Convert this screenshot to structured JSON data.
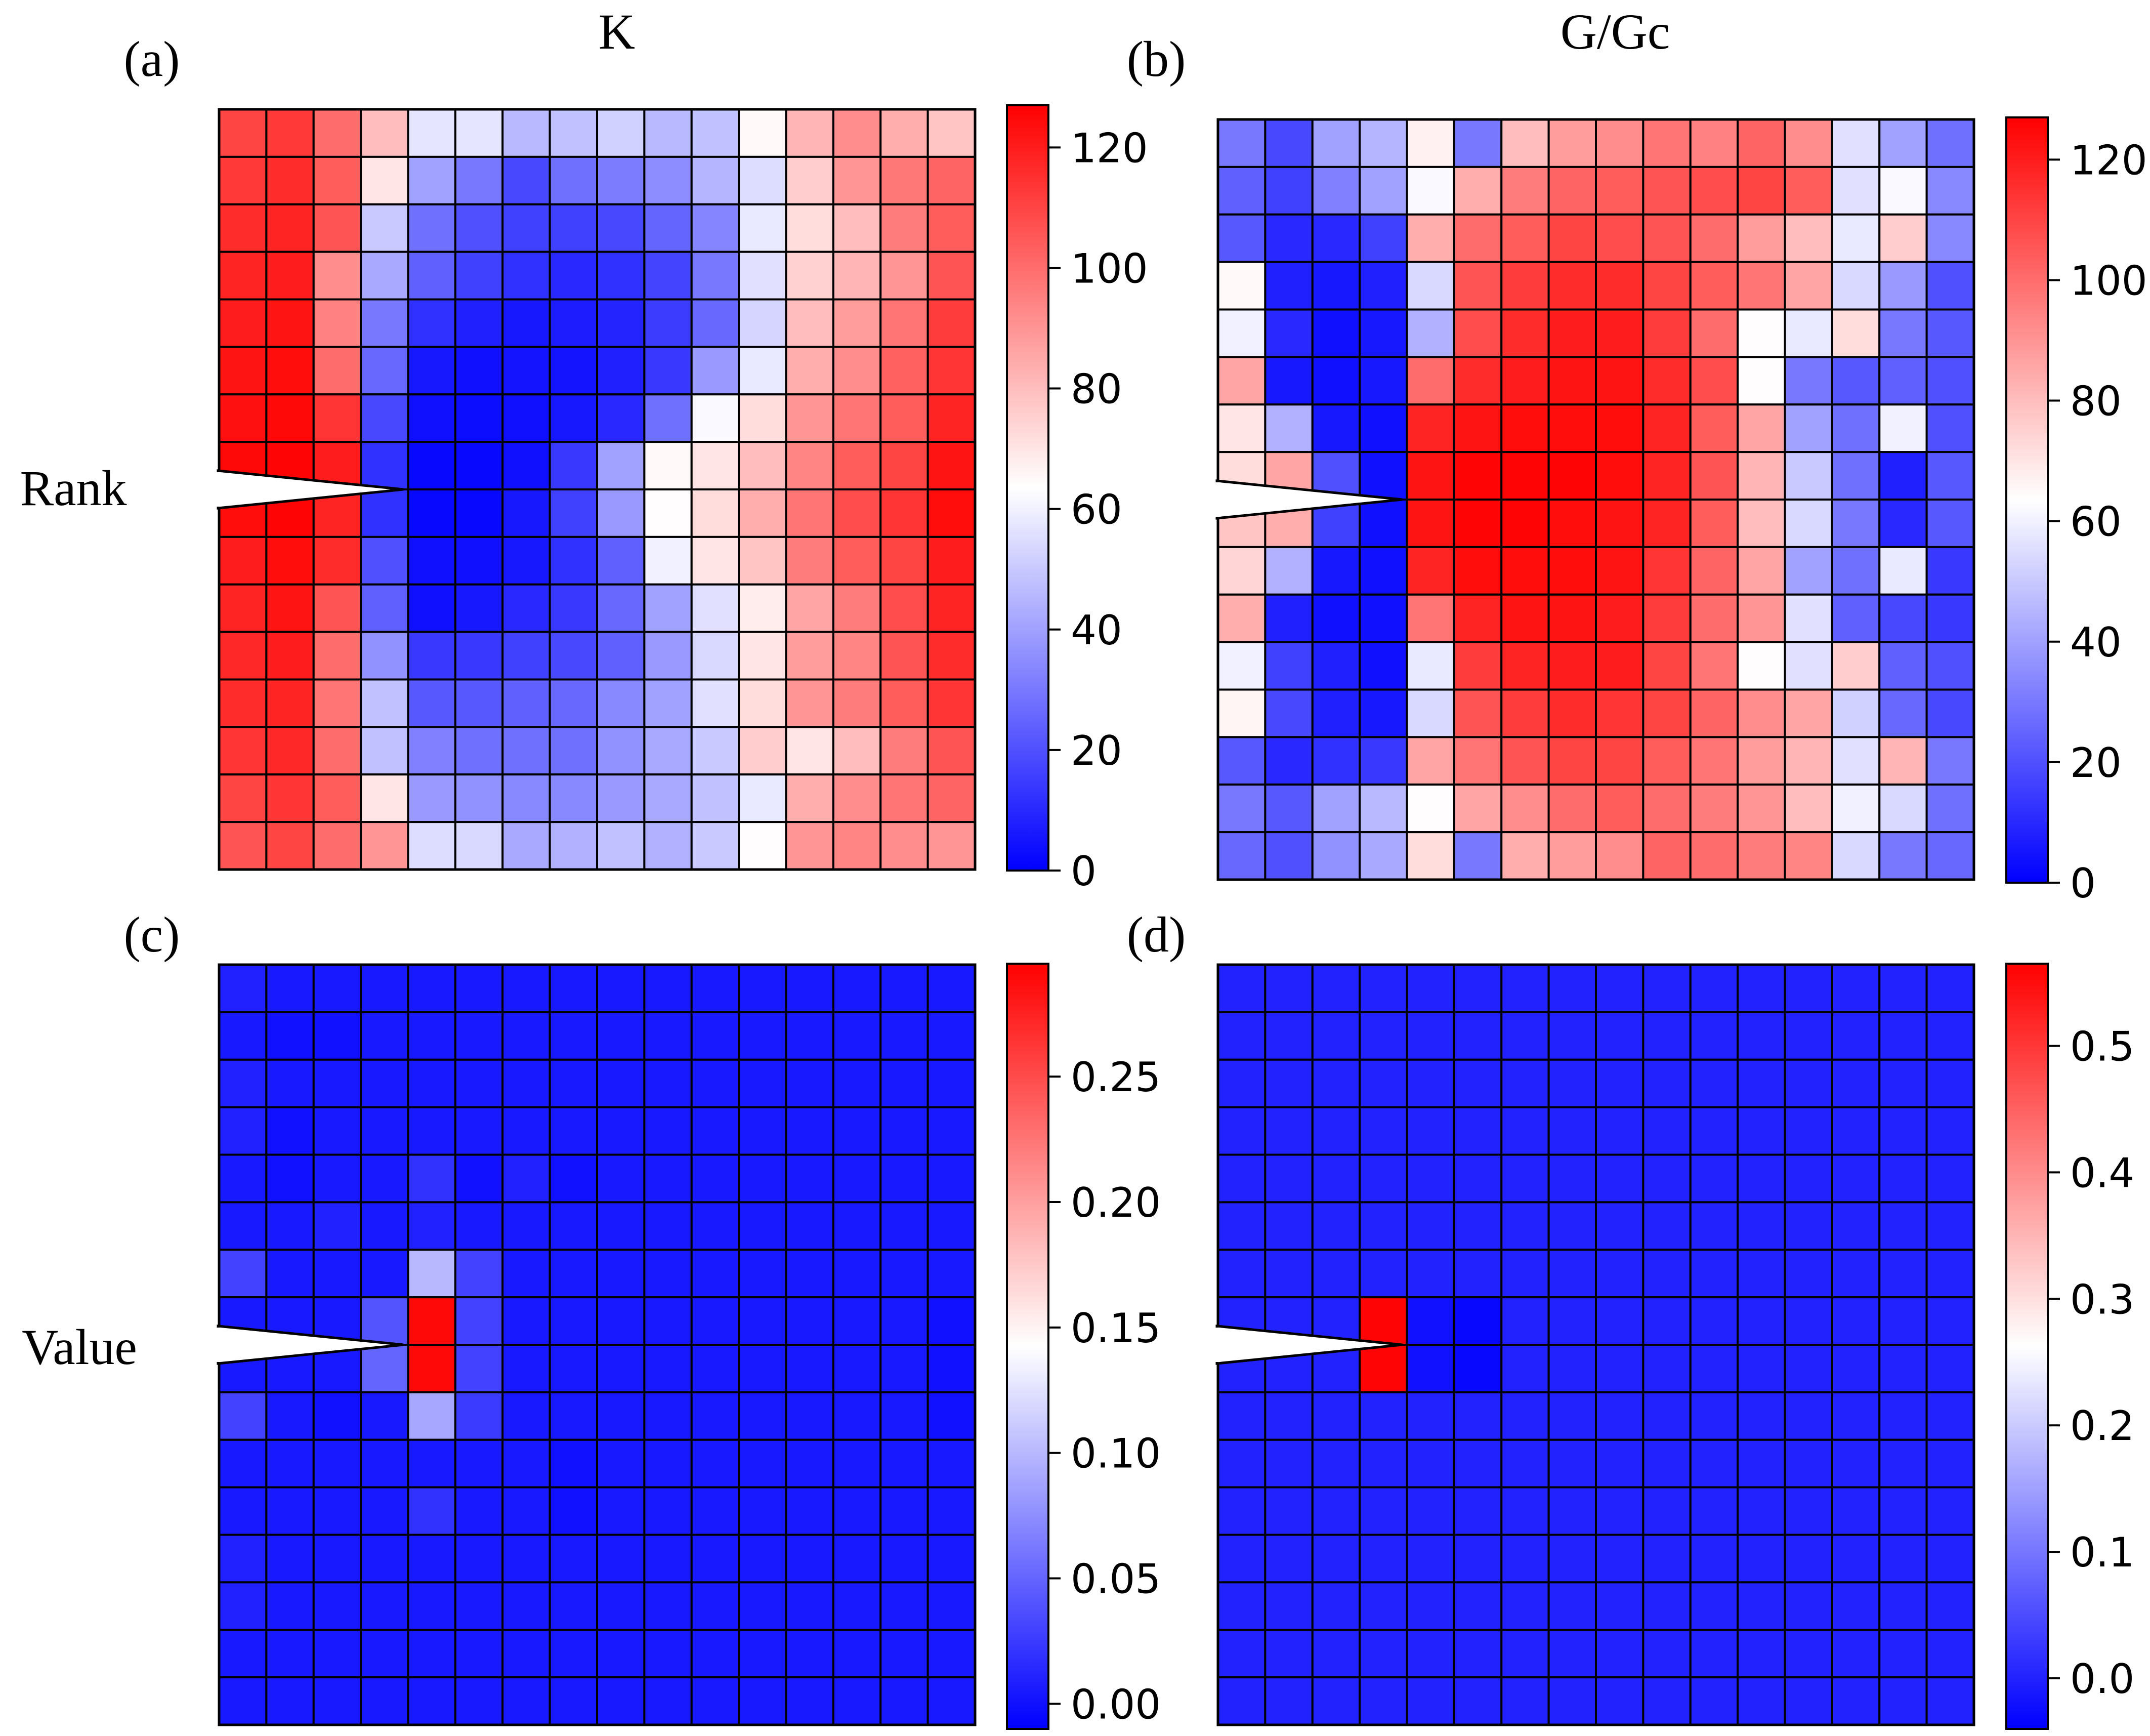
{
  "figure": {
    "column_titles": [
      "K",
      "G/Gc"
    ],
    "row_titles": [
      "Rank",
      "Value"
    ],
    "colors": {
      "low": "#0000ff",
      "mid": "#ffffff",
      "high": "#ff0000",
      "cell_border": "#000000",
      "notch_fill": "#ffffff"
    }
  },
  "chart_data": [
    {
      "panel_label": "(a)",
      "type": "heatmap",
      "rows": 16,
      "cols": 16,
      "colorbar": {
        "vmin": 0,
        "vmax": 127,
        "ticks": [
          0,
          20,
          40,
          60,
          80,
          100,
          120
        ],
        "tick_labels": [
          "0",
          "20",
          "40",
          "60",
          "80",
          "100",
          "120"
        ]
      },
      "values": [
        [
          110,
          113,
          100,
          80,
          57,
          57,
          46,
          48,
          52,
          46,
          48,
          65,
          82,
          92,
          84,
          78
        ],
        [
          113,
          116,
          104,
          70,
          40,
          30,
          18,
          28,
          31,
          35,
          45,
          55,
          76,
          90,
          97,
          102
        ],
        [
          116,
          118,
          106,
          50,
          28,
          20,
          16,
          16,
          18,
          25,
          33,
          58,
          72,
          80,
          96,
          104
        ],
        [
          118,
          120,
          92,
          42,
          24,
          16,
          12,
          10,
          12,
          17,
          30,
          56,
          75,
          82,
          90,
          106
        ],
        [
          120,
          122,
          95,
          30,
          12,
          8,
          6,
          7,
          9,
          15,
          26,
          53,
          80,
          88,
          98,
          112
        ],
        [
          122,
          124,
          100,
          26,
          6,
          4,
          5,
          5,
          8,
          14,
          38,
          58,
          84,
          92,
          103,
          114
        ],
        [
          123,
          125,
          114,
          18,
          4,
          3,
          4,
          6,
          10,
          28,
          62,
          72,
          90,
          98,
          104,
          118
        ],
        [
          125,
          126,
          120,
          12,
          2,
          2,
          4,
          14,
          40,
          65,
          70,
          80,
          94,
          104,
          110,
          122
        ],
        [
          124,
          126,
          118,
          12,
          2,
          2,
          6,
          16,
          38,
          64,
          72,
          84,
          98,
          108,
          114,
          124
        ],
        [
          120,
          124,
          116,
          20,
          4,
          4,
          6,
          12,
          24,
          60,
          70,
          78,
          96,
          104,
          110,
          120
        ],
        [
          118,
          122,
          106,
          24,
          4,
          6,
          10,
          14,
          26,
          40,
          56,
          68,
          86,
          96,
          108,
          118
        ],
        [
          117,
          120,
          100,
          36,
          14,
          14,
          16,
          18,
          24,
          38,
          54,
          70,
          88,
          94,
          106,
          116
        ],
        [
          116,
          118,
          98,
          48,
          22,
          22,
          24,
          26,
          34,
          40,
          56,
          72,
          90,
          96,
          104,
          114
        ],
        [
          114,
          117,
          100,
          48,
          32,
          28,
          28,
          28,
          36,
          42,
          50,
          76,
          70,
          80,
          96,
          106
        ],
        [
          110,
          114,
          104,
          70,
          38,
          36,
          34,
          34,
          38,
          42,
          48,
          58,
          84,
          92,
          98,
          102
        ],
        [
          106,
          110,
          100,
          90,
          55,
          54,
          42,
          44,
          48,
          44,
          50,
          64,
          90,
          94,
          92,
          90
        ]
      ]
    },
    {
      "panel_label": "(b)",
      "type": "heatmap",
      "rows": 16,
      "cols": 16,
      "colorbar": {
        "vmin": 0,
        "vmax": 127,
        "ticks": [
          0,
          20,
          40,
          60,
          80,
          100,
          120
        ],
        "tick_labels": [
          "0",
          "20",
          "40",
          "60",
          "80",
          "100",
          "120"
        ]
      },
      "values": [
        [
          30,
          18,
          40,
          45,
          67,
          30,
          80,
          88,
          92,
          98,
          95,
          102,
          92,
          56,
          40,
          28
        ],
        [
          24,
          16,
          32,
          40,
          62,
          84,
          96,
          102,
          104,
          106,
          108,
          110,
          104,
          56,
          62,
          34
        ],
        [
          22,
          10,
          10,
          16,
          84,
          100,
          104,
          110,
          108,
          106,
          100,
          88,
          80,
          58,
          76,
          34
        ],
        [
          65,
          8,
          6,
          8,
          54,
          106,
          112,
          116,
          116,
          110,
          104,
          98,
          86,
          54,
          38,
          20
        ],
        [
          60,
          10,
          4,
          6,
          44,
          108,
          116,
          120,
          120,
          112,
          100,
          64,
          58,
          72,
          30,
          22
        ],
        [
          86,
          6,
          4,
          6,
          100,
          116,
          120,
          122,
          122,
          116,
          108,
          64,
          30,
          22,
          24,
          20
        ],
        [
          70,
          44,
          6,
          4,
          118,
          122,
          124,
          124,
          124,
          118,
          104,
          86,
          40,
          28,
          60,
          20
        ],
        [
          72,
          86,
          20,
          4,
          122,
          126,
          126,
          126,
          124,
          118,
          106,
          82,
          50,
          28,
          8,
          22
        ],
        [
          78,
          84,
          16,
          4,
          122,
          126,
          126,
          124,
          122,
          118,
          104,
          80,
          54,
          30,
          10,
          22
        ],
        [
          74,
          44,
          6,
          4,
          118,
          124,
          124,
          124,
          122,
          114,
          102,
          86,
          40,
          28,
          58,
          14
        ],
        [
          84,
          8,
          4,
          4,
          98,
          118,
          122,
          122,
          120,
          112,
          100,
          90,
          56,
          24,
          18,
          14
        ],
        [
          60,
          16,
          8,
          4,
          58,
          112,
          118,
          120,
          120,
          110,
          98,
          64,
          56,
          76,
          24,
          20
        ],
        [
          66,
          18,
          8,
          6,
          54,
          106,
          112,
          116,
          114,
          110,
          102,
          92,
          86,
          52,
          26,
          18
        ],
        [
          22,
          10,
          12,
          14,
          86,
          98,
          106,
          110,
          110,
          104,
          98,
          88,
          82,
          56,
          82,
          30
        ],
        [
          30,
          22,
          40,
          46,
          64,
          86,
          92,
          100,
          104,
          100,
          96,
          90,
          80,
          60,
          54,
          28
        ],
        [
          26,
          20,
          36,
          42,
          72,
          30,
          84,
          88,
          92,
          102,
          100,
          96,
          94,
          54,
          30,
          26
        ]
      ]
    },
    {
      "panel_label": "(c)",
      "type": "heatmap",
      "rows": 16,
      "cols": 16,
      "colorbar": {
        "vmin": -0.01,
        "vmax": 0.295,
        "ticks": [
          0.0,
          0.05,
          0.1,
          0.15,
          0.2,
          0.25
        ],
        "tick_labels": [
          "0.00",
          "0.05",
          "0.10",
          "0.15",
          "0.20",
          "0.25"
        ]
      },
      "values": [
        [
          0.01,
          0.005,
          0.005,
          0.005,
          0.005,
          0.005,
          0.005,
          0.005,
          0.005,
          0.005,
          0.005,
          0.005,
          0.005,
          0.005,
          0.005,
          0.005
        ],
        [
          0.005,
          0.0,
          0.0,
          0.005,
          0.005,
          0.005,
          0.005,
          0.005,
          0.005,
          0.005,
          0.005,
          0.005,
          0.005,
          0.005,
          0.005,
          0.005
        ],
        [
          0.01,
          0.005,
          0.005,
          0.005,
          0.005,
          0.005,
          0.005,
          0.005,
          0.005,
          0.005,
          0.005,
          0.005,
          0.005,
          0.005,
          0.005,
          0.005
        ],
        [
          0.01,
          0.0,
          0.005,
          0.005,
          0.005,
          0.005,
          0.005,
          0.005,
          0.005,
          0.005,
          0.005,
          0.005,
          0.005,
          0.005,
          0.005,
          0.005
        ],
        [
          0.005,
          0.0,
          0.005,
          0.005,
          0.02,
          0.0,
          0.01,
          0.0,
          0.005,
          0.005,
          0.005,
          0.005,
          0.005,
          0.005,
          0.005,
          0.005
        ],
        [
          0.005,
          0.005,
          0.01,
          0.005,
          0.01,
          0.005,
          0.005,
          0.005,
          0.005,
          0.005,
          0.005,
          0.005,
          0.005,
          0.005,
          0.005,
          0.005
        ],
        [
          0.03,
          0.005,
          0.005,
          0.005,
          0.1,
          0.03,
          0.005,
          0.005,
          0.005,
          0.005,
          0.005,
          0.005,
          0.005,
          0.005,
          0.005,
          0.005
        ],
        [
          0.005,
          0.005,
          0.005,
          0.04,
          0.29,
          0.03,
          0.005,
          0.005,
          0.005,
          0.005,
          0.005,
          0.005,
          0.005,
          0.005,
          0.005,
          0.0
        ],
        [
          0.005,
          0.005,
          0.005,
          0.05,
          0.29,
          0.03,
          0.005,
          0.005,
          0.005,
          0.005,
          0.005,
          0.005,
          0.005,
          0.005,
          0.005,
          0.0
        ],
        [
          0.03,
          0.005,
          0.0,
          0.005,
          0.09,
          0.025,
          0.005,
          0.005,
          0.005,
          0.005,
          0.005,
          0.005,
          0.005,
          0.005,
          0.005,
          0.0
        ],
        [
          0.005,
          0.005,
          0.005,
          0.005,
          0.005,
          0.005,
          0.005,
          0.0,
          0.005,
          0.005,
          0.005,
          0.005,
          0.005,
          0.005,
          0.005,
          0.005
        ],
        [
          0.005,
          0.005,
          0.005,
          0.005,
          0.02,
          0.005,
          0.005,
          0.0,
          0.005,
          0.005,
          0.005,
          0.005,
          0.005,
          0.005,
          0.005,
          0.005
        ],
        [
          0.01,
          0.005,
          0.005,
          0.005,
          0.005,
          0.005,
          0.005,
          0.005,
          0.005,
          0.005,
          0.005,
          0.005,
          0.005,
          0.005,
          0.005,
          0.005
        ],
        [
          0.01,
          0.005,
          0.005,
          0.005,
          0.005,
          0.005,
          0.005,
          0.005,
          0.005,
          0.005,
          0.005,
          0.005,
          0.005,
          0.005,
          0.005,
          0.005
        ],
        [
          0.005,
          0.005,
          0.005,
          0.005,
          0.005,
          0.005,
          0.005,
          0.005,
          0.005,
          0.005,
          0.005,
          0.005,
          0.005,
          0.005,
          0.005,
          0.005
        ],
        [
          0.005,
          0.005,
          0.005,
          0.005,
          0.005,
          0.005,
          0.005,
          0.005,
          0.005,
          0.005,
          0.005,
          0.005,
          0.005,
          0.005,
          0.005,
          0.005
        ]
      ]
    },
    {
      "panel_label": "(d)",
      "type": "heatmap",
      "rows": 16,
      "cols": 16,
      "colorbar": {
        "vmin": -0.04,
        "vmax": 0.565,
        "ticks": [
          0.0,
          0.1,
          0.2,
          0.3,
          0.4,
          0.5
        ],
        "tick_labels": [
          "0.0",
          "0.1",
          "0.2",
          "0.3",
          "0.4",
          "0.5"
        ]
      },
      "values": [
        [
          0.0,
          0.0,
          0.0,
          0.0,
          0.0,
          0.0,
          0.0,
          0.0,
          0.0,
          0.0,
          0.0,
          0.0,
          0.0,
          0.0,
          0.0,
          0.0
        ],
        [
          0.0,
          0.0,
          0.0,
          0.0,
          0.0,
          0.0,
          0.0,
          0.0,
          0.0,
          0.0,
          0.0,
          0.0,
          0.0,
          0.0,
          0.0,
          0.0
        ],
        [
          0.0,
          0.0,
          0.0,
          0.0,
          0.0,
          0.0,
          0.0,
          0.0,
          0.0,
          0.0,
          0.0,
          0.0,
          0.0,
          0.0,
          0.0,
          0.0
        ],
        [
          0.0,
          0.0,
          0.0,
          0.0,
          0.0,
          0.0,
          0.0,
          0.0,
          0.0,
          0.0,
          0.0,
          0.0,
          0.0,
          0.0,
          0.0,
          0.0
        ],
        [
          0.0,
          0.0,
          0.0,
          0.0,
          0.0,
          0.0,
          0.0,
          0.0,
          0.0,
          0.0,
          0.0,
          0.0,
          0.0,
          0.0,
          0.0,
          0.0
        ],
        [
          0.0,
          0.0,
          0.0,
          0.0,
          0.0,
          0.0,
          0.0,
          0.0,
          0.0,
          0.0,
          0.0,
          0.0,
          0.0,
          0.0,
          0.0,
          0.0
        ],
        [
          0.0,
          0.0,
          0.0,
          0.0,
          0.0,
          0.0,
          0.0,
          0.0,
          0.0,
          0.0,
          0.0,
          0.0,
          0.0,
          0.0,
          0.0,
          0.0
        ],
        [
          0.0,
          0.0,
          0.0,
          0.56,
          -0.02,
          -0.03,
          0.0,
          0.0,
          0.0,
          0.0,
          0.0,
          0.0,
          0.0,
          0.0,
          0.0,
          0.0
        ],
        [
          0.0,
          0.0,
          0.0,
          0.56,
          -0.02,
          -0.03,
          0.0,
          0.0,
          0.0,
          0.0,
          0.0,
          0.0,
          0.0,
          0.0,
          0.0,
          0.0
        ],
        [
          0.0,
          0.0,
          0.0,
          0.0,
          0.0,
          0.0,
          0.0,
          0.0,
          0.0,
          0.0,
          0.0,
          0.0,
          0.0,
          0.0,
          0.0,
          0.0
        ],
        [
          0.0,
          0.0,
          0.0,
          0.0,
          0.0,
          0.0,
          0.0,
          0.0,
          0.0,
          0.0,
          0.0,
          0.0,
          0.0,
          0.0,
          0.0,
          0.0
        ],
        [
          0.0,
          0.0,
          0.0,
          0.0,
          0.0,
          0.0,
          0.0,
          0.0,
          0.0,
          0.0,
          0.0,
          0.0,
          0.0,
          0.0,
          0.0,
          0.0
        ],
        [
          0.0,
          0.0,
          0.0,
          0.0,
          0.0,
          0.0,
          0.0,
          0.0,
          0.0,
          0.0,
          0.0,
          0.0,
          0.0,
          0.0,
          0.0,
          0.0
        ],
        [
          0.0,
          0.0,
          0.0,
          0.0,
          0.0,
          0.0,
          0.0,
          0.0,
          0.0,
          0.0,
          0.0,
          0.0,
          0.0,
          0.0,
          0.0,
          0.0
        ],
        [
          0.0,
          0.0,
          0.0,
          0.0,
          0.0,
          0.0,
          0.0,
          0.0,
          0.0,
          0.0,
          0.0,
          0.0,
          0.0,
          0.0,
          0.0,
          0.0
        ],
        [
          0.0,
          0.0,
          0.0,
          0.0,
          0.0,
          0.0,
          0.0,
          0.0,
          0.0,
          0.0,
          0.0,
          0.0,
          0.0,
          0.0,
          0.0,
          0.0
        ]
      ]
    }
  ]
}
